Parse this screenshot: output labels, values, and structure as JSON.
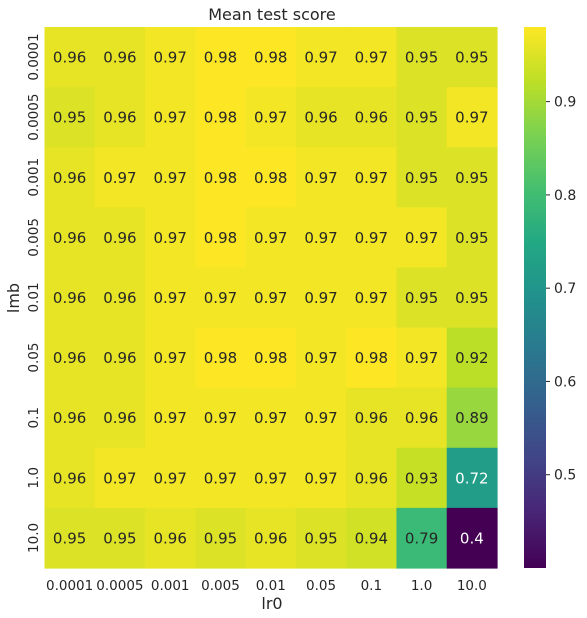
{
  "chart_data": {
    "type": "heatmap",
    "title": "Mean test score",
    "xlabel": "lr0",
    "ylabel": "lmb",
    "x_categories": [
      "0.0001",
      "0.0005",
      "0.001",
      "0.005",
      "0.01",
      "0.05",
      "0.1",
      "1.0",
      "10.0"
    ],
    "y_categories": [
      "0.0001",
      "0.0005",
      "0.001",
      "0.005",
      "0.01",
      "0.05",
      "0.1",
      "1.0",
      "10.0"
    ],
    "values": [
      [
        0.96,
        0.96,
        0.97,
        0.98,
        0.98,
        0.97,
        0.97,
        0.95,
        0.95
      ],
      [
        0.95,
        0.96,
        0.97,
        0.98,
        0.97,
        0.96,
        0.96,
        0.95,
        0.97
      ],
      [
        0.96,
        0.97,
        0.97,
        0.98,
        0.98,
        0.97,
        0.97,
        0.95,
        0.95
      ],
      [
        0.96,
        0.96,
        0.97,
        0.98,
        0.97,
        0.97,
        0.97,
        0.97,
        0.95
      ],
      [
        0.96,
        0.96,
        0.97,
        0.97,
        0.97,
        0.97,
        0.97,
        0.95,
        0.95
      ],
      [
        0.96,
        0.96,
        0.97,
        0.98,
        0.98,
        0.97,
        0.98,
        0.97,
        0.92
      ],
      [
        0.96,
        0.96,
        0.97,
        0.97,
        0.97,
        0.97,
        0.96,
        0.96,
        0.89
      ],
      [
        0.96,
        0.97,
        0.97,
        0.97,
        0.97,
        0.97,
        0.96,
        0.93,
        0.72
      ],
      [
        0.95,
        0.95,
        0.96,
        0.95,
        0.96,
        0.95,
        0.94,
        0.79,
        0.4
      ]
    ],
    "labels": [
      [
        "0.96",
        "0.96",
        "0.97",
        "0.98",
        "0.98",
        "0.97",
        "0.97",
        "0.95",
        "0.95"
      ],
      [
        "0.95",
        "0.96",
        "0.97",
        "0.98",
        "0.97",
        "0.96",
        "0.96",
        "0.95",
        "0.97"
      ],
      [
        "0.96",
        "0.97",
        "0.97",
        "0.98",
        "0.98",
        "0.97",
        "0.97",
        "0.95",
        "0.95"
      ],
      [
        "0.96",
        "0.96",
        "0.97",
        "0.98",
        "0.97",
        "0.97",
        "0.97",
        "0.97",
        "0.95"
      ],
      [
        "0.96",
        "0.96",
        "0.97",
        "0.97",
        "0.97",
        "0.97",
        "0.97",
        "0.95",
        "0.95"
      ],
      [
        "0.96",
        "0.96",
        "0.97",
        "0.98",
        "0.98",
        "0.97",
        "0.98",
        "0.97",
        "0.92"
      ],
      [
        "0.96",
        "0.96",
        "0.97",
        "0.97",
        "0.97",
        "0.97",
        "0.96",
        "0.96",
        "0.89"
      ],
      [
        "0.96",
        "0.97",
        "0.97",
        "0.97",
        "0.97",
        "0.97",
        "0.96",
        "0.93",
        "0.72"
      ],
      [
        "0.95",
        "0.95",
        "0.96",
        "0.95",
        "0.96",
        "0.95",
        "0.94",
        "0.79",
        "0.4"
      ]
    ],
    "colormap": "viridis",
    "vmin": 0.4,
    "vmax": 0.98,
    "colorbar_ticks": [
      "0.5",
      "0.6",
      "0.7",
      "0.8",
      "0.9"
    ],
    "colorbar_tick_values": [
      0.5,
      0.6,
      0.7,
      0.8,
      0.9
    ],
    "grid": false,
    "text_color_light": "#ffffff",
    "text_color_dark": "#262626"
  }
}
